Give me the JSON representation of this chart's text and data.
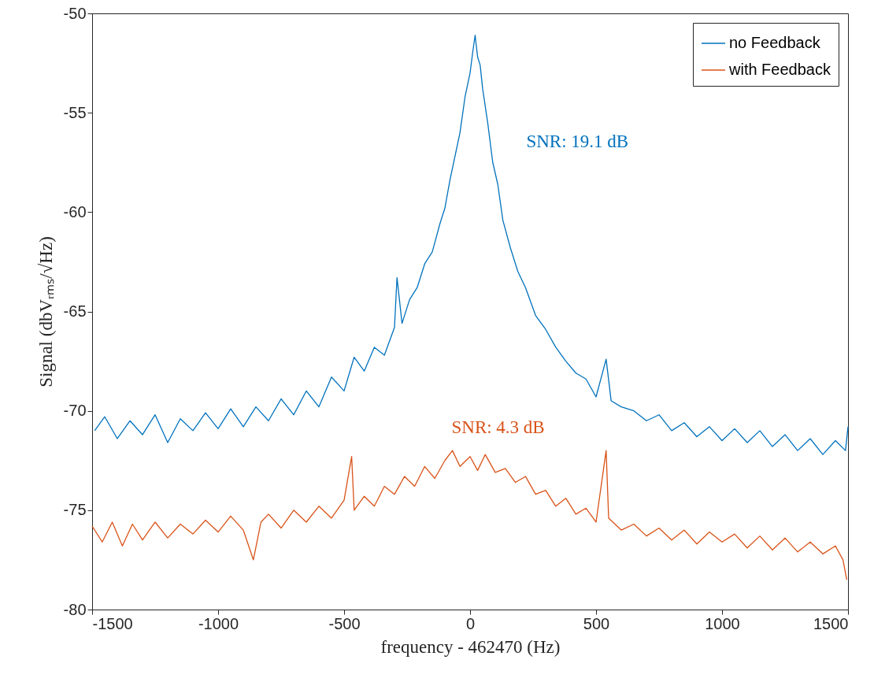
{
  "chart_data": {
    "type": "line",
    "xlabel": "frequency - 462470 (Hz)",
    "ylabel": "Signal (dbVᵣₘₛ/√Hz)",
    "xlim": [
      -1500,
      1500
    ],
    "xticks": [
      -1500,
      -1000,
      -500,
      0,
      500,
      1000,
      1500
    ],
    "ylim": [
      -80,
      -50
    ],
    "yticks": [
      -80,
      -75,
      -70,
      -65,
      -60,
      -55,
      -50
    ],
    "grid": false,
    "legend": "top right",
    "marker": "none",
    "line_style": "solid",
    "annotations": [
      "SNR: 19.1 dB",
      "SNR: 4.3 dB"
    ],
    "series": [
      {
        "name": "no Feedback",
        "color": "#0072bd",
        "x": [
          -1490,
          -1450,
          -1400,
          -1350,
          -1300,
          -1250,
          -1200,
          -1150,
          -1100,
          -1050,
          -1000,
          -950,
          -900,
          -850,
          -800,
          -750,
          -700,
          -650,
          -600,
          -550,
          -500,
          -460,
          -420,
          -380,
          -340,
          -300,
          -290,
          -270,
          -240,
          -210,
          -180,
          -150,
          -120,
          -100,
          -80,
          -60,
          -40,
          -20,
          0,
          10,
          20,
          30,
          40,
          50,
          70,
          90,
          110,
          130,
          160,
          190,
          220,
          260,
          300,
          340,
          380,
          420,
          460,
          500,
          540,
          560,
          600,
          650,
          700,
          750,
          800,
          850,
          900,
          950,
          1000,
          1050,
          1100,
          1150,
          1200,
          1250,
          1300,
          1350,
          1400,
          1450,
          1490,
          1500
        ],
        "values": [
          -71.0,
          -70.3,
          -71.4,
          -70.5,
          -71.2,
          -70.2,
          -71.6,
          -70.4,
          -71.0,
          -70.1,
          -70.9,
          -69.9,
          -70.8,
          -69.8,
          -70.5,
          -69.4,
          -70.2,
          -69.0,
          -69.8,
          -68.3,
          -69.0,
          -67.3,
          -68.0,
          -66.8,
          -67.2,
          -65.8,
          -63.3,
          -65.6,
          -64.4,
          -63.8,
          -62.6,
          -62.0,
          -60.6,
          -59.8,
          -58.4,
          -57.2,
          -56.0,
          -54.2,
          -53.0,
          -52.0,
          -51.1,
          -52.2,
          -52.6,
          -53.8,
          -55.5,
          -57.5,
          -58.6,
          -60.4,
          -61.8,
          -63.0,
          -63.8,
          -65.2,
          -65.9,
          -66.8,
          -67.5,
          -68.1,
          -68.4,
          -69.3,
          -67.4,
          -69.5,
          -69.8,
          -70.0,
          -70.5,
          -70.2,
          -71.0,
          -70.6,
          -71.3,
          -70.8,
          -71.5,
          -70.9,
          -71.6,
          -71.0,
          -71.8,
          -71.2,
          -72.0,
          -71.4,
          -72.2,
          -71.5,
          -72.0,
          -70.8
        ]
      },
      {
        "name": "with Feedback",
        "color": "#d95319",
        "x": [
          -1500,
          -1460,
          -1420,
          -1380,
          -1340,
          -1300,
          -1250,
          -1200,
          -1150,
          -1100,
          -1050,
          -1000,
          -950,
          -900,
          -860,
          -830,
          -800,
          -750,
          -700,
          -650,
          -600,
          -550,
          -500,
          -470,
          -460,
          -420,
          -380,
          -340,
          -300,
          -260,
          -220,
          -180,
          -140,
          -100,
          -70,
          -40,
          0,
          30,
          60,
          100,
          140,
          180,
          220,
          260,
          300,
          340,
          380,
          420,
          460,
          500,
          540,
          550,
          600,
          650,
          700,
          750,
          800,
          850,
          900,
          950,
          1000,
          1050,
          1100,
          1150,
          1200,
          1250,
          1300,
          1350,
          1400,
          1450,
          1480,
          1495
        ],
        "values": [
          -75.8,
          -76.6,
          -75.6,
          -76.8,
          -75.7,
          -76.5,
          -75.6,
          -76.4,
          -75.7,
          -76.2,
          -75.5,
          -76.1,
          -75.3,
          -76.0,
          -77.5,
          -75.6,
          -75.2,
          -75.9,
          -75.0,
          -75.6,
          -74.8,
          -75.4,
          -74.5,
          -72.3,
          -75.0,
          -74.3,
          -74.8,
          -73.8,
          -74.2,
          -73.3,
          -73.8,
          -72.8,
          -73.4,
          -72.5,
          -72.0,
          -72.8,
          -72.3,
          -73.0,
          -72.2,
          -73.1,
          -72.9,
          -73.6,
          -73.3,
          -74.2,
          -74.0,
          -74.8,
          -74.4,
          -75.2,
          -74.9,
          -75.6,
          -72.0,
          -75.4,
          -76.0,
          -75.7,
          -76.3,
          -75.9,
          -76.5,
          -76.0,
          -76.7,
          -76.1,
          -76.6,
          -76.2,
          -76.9,
          -76.3,
          -77.0,
          -76.4,
          -77.1,
          -76.6,
          -77.2,
          -76.8,
          -77.5,
          -78.5
        ]
      }
    ]
  }
}
